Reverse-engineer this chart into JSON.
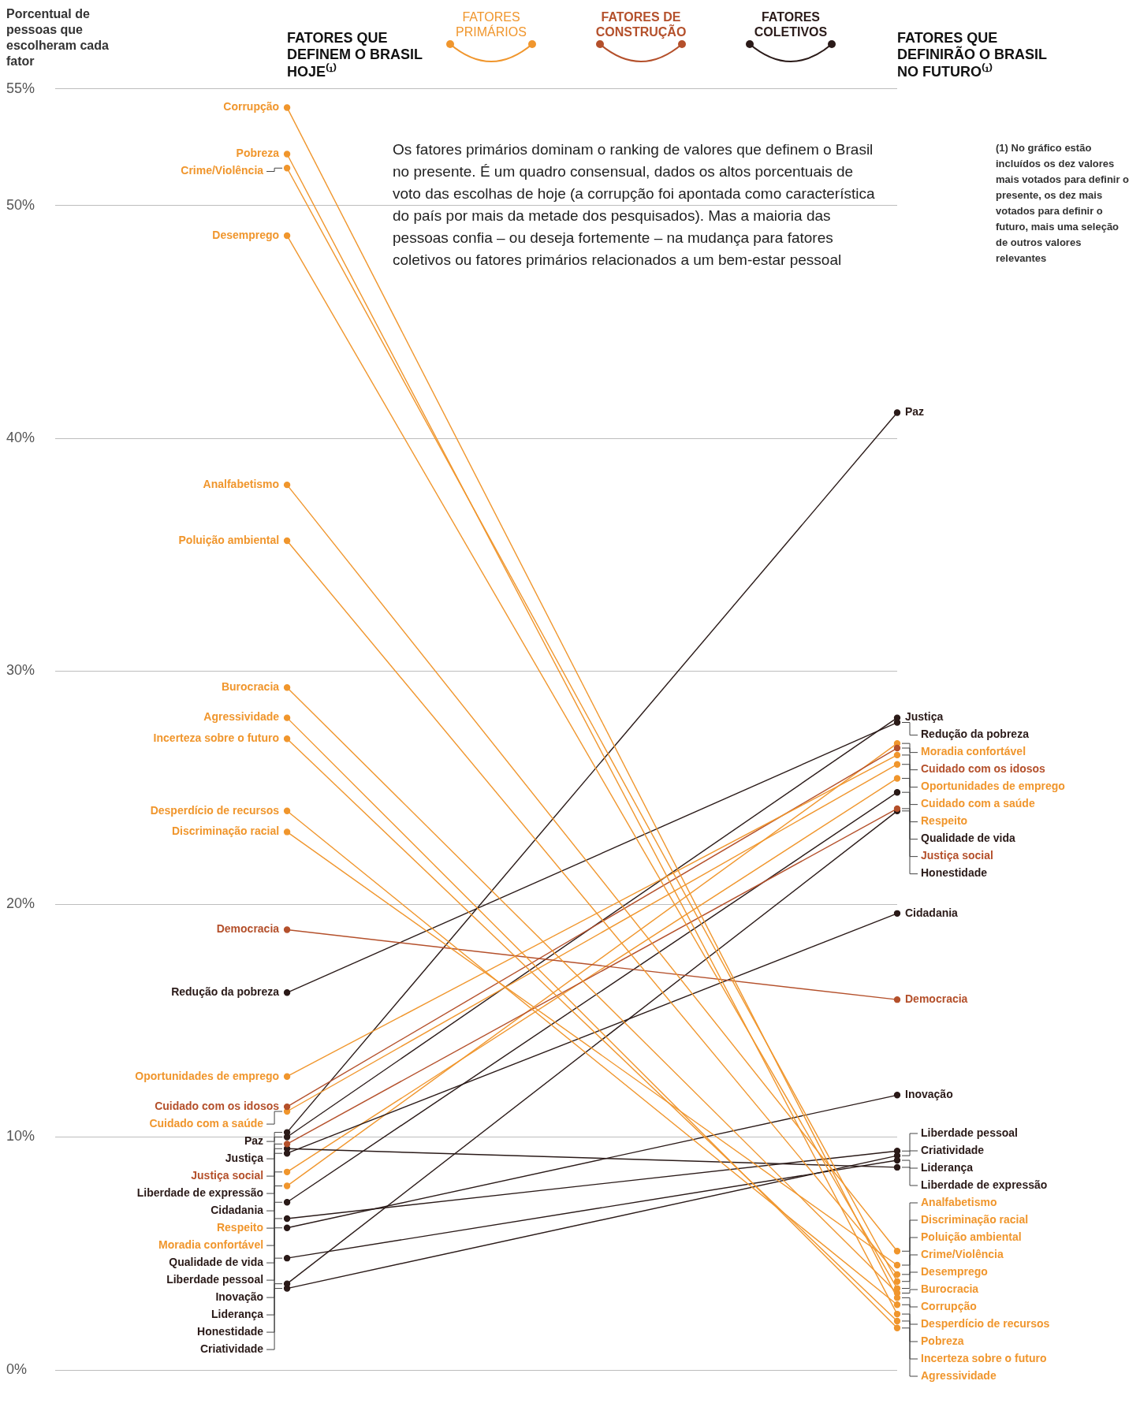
{
  "chart_data": {
    "type": "line",
    "ylabel": "Porcentual de pessoas que escolheram cada fator",
    "categories": [
      "FATORES QUE DEFINEM O BRASIL HOJE⁽¹⁾",
      "FATORES QUE DEFINIRÃO O BRASIL NO FUTURO⁽¹⁾"
    ],
    "ylim": [
      0,
      55
    ],
    "yticks": [
      {
        "value": 0,
        "label": "0%"
      },
      {
        "value": 10,
        "label": "10%"
      },
      {
        "value": 20,
        "label": "20%"
      },
      {
        "value": 30,
        "label": "30%"
      },
      {
        "value": 40,
        "label": "40%"
      },
      {
        "value": 50,
        "label": "50%"
      },
      {
        "value": 55,
        "label": "55%"
      }
    ],
    "grid": "y",
    "marker": "circle",
    "annotations": [
      "FATORES PRIMÁRIOS",
      "FATORES DE CONSTRUÇÃO",
      "FATORES COLETIVOS",
      "Os fatores primários dominam o ranking de valores que definem o Brasil no presente. É um quadro consensual, dados os altos porcentuais de voto das escolhas de hoje (a corrupção foi apontada como característica do país por mais da metade dos pesquisados). Mas a maioria das pessoas confia – ou deseja fortemente – na mudança para fatores coletivos ou fatores primários relacionados a um bem-estar pessoal",
      "(1) No gráfico estão incluídos os dez valores mais votados para definir o presente, os dez mais votados para definir o futuro, mais uma seleção de outros valores relevantes"
    ],
    "series": [
      {
        "name": "Corrupção",
        "color": "#f0962d",
        "values": [
          54.2,
          3.1
        ]
      },
      {
        "name": "Pobreza",
        "color": "#f0962d",
        "values": [
          52.2,
          2.4
        ]
      },
      {
        "name": "Crime/Violência",
        "color": "#f0962d",
        "values": [
          51.6,
          3.8
        ]
      },
      {
        "name": "Desemprego",
        "color": "#f0962d",
        "values": [
          48.7,
          3.5
        ]
      },
      {
        "name": "Analfabetismo",
        "color": "#f0962d",
        "values": [
          38.0,
          5.1
        ]
      },
      {
        "name": "Poluição ambiental",
        "color": "#f0962d",
        "values": [
          35.6,
          4.1
        ]
      },
      {
        "name": "Burocracia",
        "color": "#f0962d",
        "values": [
          29.3,
          3.3
        ]
      },
      {
        "name": "Agressividade",
        "color": "#f0962d",
        "values": [
          28.0,
          1.8
        ]
      },
      {
        "name": "Incerteza sobre o futuro",
        "color": "#f0962d",
        "values": [
          27.1,
          2.1
        ]
      },
      {
        "name": "Desperdício de recursos",
        "color": "#f0962d",
        "values": [
          24.0,
          2.8
        ]
      },
      {
        "name": "Discriminação racial",
        "color": "#f0962d",
        "values": [
          23.1,
          4.5
        ]
      },
      {
        "name": "Democracia",
        "color": "#b4502b",
        "values": [
          18.9,
          15.9
        ]
      },
      {
        "name": "Redução da pobreza",
        "color": "#2a1a18",
        "values": [
          16.2,
          27.8
        ]
      },
      {
        "name": "Oportunidades de emprego",
        "color": "#f0962d",
        "values": [
          12.6,
          26.4
        ]
      },
      {
        "name": "Cuidado com os idosos",
        "color": "#b4502b",
        "values": [
          11.3,
          26.7
        ]
      },
      {
        "name": "Cuidado com a saúde",
        "color": "#f0962d",
        "values": [
          11.1,
          26.0
        ]
      },
      {
        "name": "Paz",
        "color": "#2a1a18",
        "values": [
          10.2,
          41.1
        ]
      },
      {
        "name": "Justiça",
        "color": "#2a1a18",
        "values": [
          10.0,
          28.0
        ]
      },
      {
        "name": "Justiça social",
        "color": "#b4502b",
        "values": [
          9.7,
          24.1
        ]
      },
      {
        "name": "Liberdade de expressão",
        "color": "#2a1a18",
        "values": [
          9.5,
          8.7
        ]
      },
      {
        "name": "Cidadania",
        "color": "#2a1a18",
        "values": [
          9.3,
          19.6
        ]
      },
      {
        "name": "Respeito",
        "color": "#f0962d",
        "values": [
          8.5,
          25.4
        ]
      },
      {
        "name": "Moradia confortável",
        "color": "#f0962d",
        "values": [
          7.9,
          26.9
        ]
      },
      {
        "name": "Qualidade de vida",
        "color": "#2a1a18",
        "values": [
          7.2,
          24.8
        ]
      },
      {
        "name": "Liberdade pessoal",
        "color": "#2a1a18",
        "values": [
          6.5,
          9.4
        ]
      },
      {
        "name": "Inovação",
        "color": "#2a1a18",
        "values": [
          6.1,
          11.8
        ]
      },
      {
        "name": "Liderança",
        "color": "#2a1a18",
        "values": [
          4.8,
          9.0
        ]
      },
      {
        "name": "Honestidade",
        "color": "#2a1a18",
        "values": [
          3.7,
          24.0
        ]
      },
      {
        "name": "Criatividade",
        "color": "#2a1a18",
        "values": [
          3.5,
          9.2
        ]
      }
    ]
  }
}
